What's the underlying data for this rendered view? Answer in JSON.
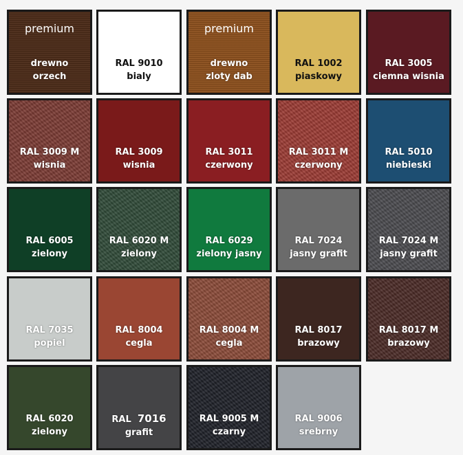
{
  "premium_label": "premium",
  "swatches": [
    {
      "l1": "drewno",
      "l2": "orzech",
      "color": "#4a2a17",
      "premium": true
    },
    {
      "l1": "RAL 9010",
      "l2": "bialy",
      "color": "#ffffff",
      "dark": true
    },
    {
      "l1": "drewno",
      "l2": "zloty dab",
      "color": "#8a4e1c",
      "premium": true
    },
    {
      "l1": "RAL 1002",
      "l2": "piaskowy",
      "color": "#d9b85c",
      "dark": true
    },
    {
      "l1": "RAL 3005",
      "l2": "ciemna wisnia",
      "color": "#5a1a22"
    },
    {
      "l1": "RAL 3009 M",
      "l2": "wisnia",
      "color": "#7a3a33",
      "tex": true
    },
    {
      "l1": "RAL 3009",
      "l2": "wisnia",
      "color": "#7a1a1a"
    },
    {
      "l1": "RAL 3011",
      "l2": "czerwony",
      "color": "#8a1e22"
    },
    {
      "l1": "RAL 3011 M",
      "l2": "czerwony",
      "color": "#9a3a33",
      "tex": true
    },
    {
      "l1": "RAL 5010",
      "l2": "niebieski",
      "color": "#1d4e72"
    },
    {
      "l1": "RAL 6005",
      "l2": "zielony",
      "color": "#0f3f26"
    },
    {
      "l1": "RAL 6020 M",
      "l2": "zielony",
      "color": "#2f4a38",
      "tex": true
    },
    {
      "l1": "RAL 6029",
      "l2": "zielony jasny",
      "color": "#107a3e"
    },
    {
      "l1": "RAL 7024",
      "l2": "jasny grafit",
      "color": "#6b6b6b"
    },
    {
      "l1": "RAL 7024 M",
      "l2": "jasny grafit",
      "color": "#4a4a4e",
      "tex": true
    },
    {
      "l1": "RAL 7035",
      "l2": "popiel",
      "color": "#c8ccca"
    },
    {
      "l1": "RAL 8004",
      "l2": "cegla",
      "color": "#9a4633"
    },
    {
      "l1": "RAL 8004 M",
      "l2": "cegla",
      "color": "#8a4a38",
      "tex": true
    },
    {
      "l1": "RAL 8017",
      "l2": "brazowy",
      "color": "#3d2620"
    },
    {
      "l1": "RAL 8017 M",
      "l2": "brazowy",
      "color": "#4a2a26",
      "tex": true
    },
    {
      "l1": "RAL 6020",
      "l2": "zielony",
      "color": "#35472c"
    },
    {
      "l1": "RAL",
      "l1b": "7016",
      "l2": "grafit",
      "color": "#444446"
    },
    {
      "l1": "RAL 9005 M",
      "l2": "czarny",
      "color": "#1e2028",
      "tex": true
    },
    {
      "l1": "RAL 9006",
      "l2": "srebrny",
      "color": "#9ea3a8"
    }
  ]
}
